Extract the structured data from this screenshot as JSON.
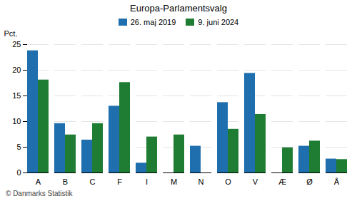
{
  "chart_data": {
    "type": "bar",
    "title": "Europa-Parlamentsvalg",
    "ylabel": "Pct.",
    "footnote": "© Danmarks Statistik",
    "categories": [
      "A",
      "B",
      "C",
      "F",
      "I",
      "M",
      "N",
      "O",
      "V",
      "Æ",
      "Ø",
      "Å"
    ],
    "series": [
      {
        "name": "26. maj 2019",
        "color": "#1f6faf",
        "values": [
          23.8,
          9.6,
          6.4,
          13.0,
          1.9,
          0.0,
          5.2,
          13.7,
          19.4,
          0.0,
          5.2,
          2.7
        ]
      },
      {
        "name": "9. juni 2024",
        "color": "#1e7d32",
        "values": [
          18.1,
          7.4,
          9.6,
          17.6,
          7.0,
          7.4,
          0.0,
          8.5,
          11.4,
          4.9,
          6.2,
          2.6
        ]
      }
    ],
    "ylim": [
      0,
      25
    ],
    "yticks": [
      0,
      5,
      10,
      15,
      20,
      25
    ],
    "grid": true,
    "legend": "top"
  }
}
